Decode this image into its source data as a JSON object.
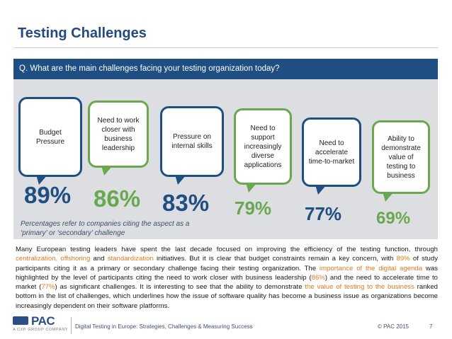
{
  "slide": {
    "title": "Testing Challenges",
    "question": "Q. What are the main challenges facing your testing organization today?"
  },
  "challenges": [
    {
      "label": "Budget Pressure",
      "percent": "89%",
      "color": "#1f4e82"
    },
    {
      "label": "Need to work closer with business leadership",
      "percent": "86%",
      "color": "#6aa84f"
    },
    {
      "label": "Pressure on internal skills",
      "percent": "83%",
      "color": "#1f4e82"
    },
    {
      "label": "Need to support increasingly diverse applications",
      "percent": "79%",
      "color": "#6aa84f"
    },
    {
      "label": "Need to accelerate time-to-market",
      "percent": "77%",
      "color": "#1f4e82"
    },
    {
      "label": "Ability to demonstrate value of testing to business",
      "percent": "69%",
      "color": "#6aa84f"
    }
  ],
  "footnote": "Percentages refer to companies citing the aspect as a ‘primary’ or ‘secondary’ challenge",
  "body": {
    "s1": "Many European testing leaders have spent the last decade focused on improving the efficiency of the testing function, through ",
    "h1": "centralization, offshoring",
    "s2": " and ",
    "h2": "standardization",
    "s3": " initiatives. But it is clear that budget constraints remain a key concern, with ",
    "h3": "89%",
    "s4": " of study participants citing it as a primary or secondary challenge facing their testing organization. The ",
    "h4": "importance of the digital agenda",
    "s5": " was highlighted by the level of participants citing the need to work closer with business leadership (",
    "h5": "86%",
    "s6": ") and the need to accelerate time to market (",
    "h6": "77%",
    "s7": ") as significant challenges. It is interesting to see that the ability to demonstrate ",
    "h7": "the value of testing to the business",
    "s8": " ranked bottom in the list of challenges, which underlines how the issue of software quality has become a business issue as organizations become increasingly dependent on their software platforms."
  },
  "footer": {
    "logo_word": "PAC",
    "logo_tag": "A CXP GROUP COMPANY",
    "report": "Digital Testing in Europe: Strategies, Challenges & Measuring Success",
    "copyright": "© PAC 2015",
    "page": "7"
  },
  "colors": {
    "brand_blue": "#1f4e82",
    "accent_green": "#6aa84f",
    "highlight_orange": "#e07b20"
  }
}
